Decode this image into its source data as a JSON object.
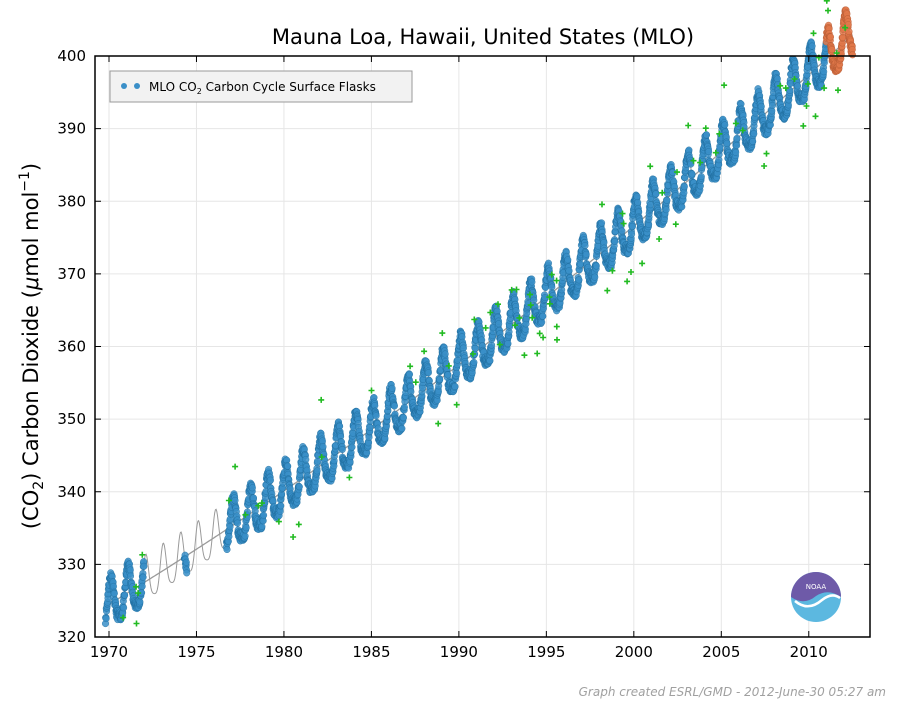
{
  "chart_data": {
    "type": "scatter",
    "title": "Mauna Loa, Hawaii, United States (MLO)",
    "ylabel_parts": {
      "pre": "(CO",
      "sub": "2",
      "mid": ") Carbon Dioxide (",
      "mu": "μ",
      "post": "mol mol",
      "sup": "−1",
      "end": ")"
    },
    "xlim": [
      1969.2,
      2013.5
    ],
    "ylim": [
      320,
      400
    ],
    "xticks": [
      1970,
      1975,
      1980,
      1985,
      1990,
      1995,
      2000,
      2005,
      2010
    ],
    "yticks": [
      320,
      330,
      340,
      350,
      360,
      370,
      380,
      390,
      400
    ],
    "grid": true,
    "legend": {
      "placement": "top-left",
      "text_parts": {
        "pre": "MLO CO",
        "sub": "2",
        "post": " Carbon Cycle Surface Flasks"
      }
    },
    "trend": {
      "base_year": 1970,
      "base_value": 324.5,
      "slope_per_year": 1.475,
      "curvature": 0.0087,
      "seasonal_amplitude": 3.1
    },
    "series": [
      {
        "kind": "flask-samples",
        "color": "#3a8fc8",
        "x_range": [
          1969.8,
          2011.0
        ]
      },
      {
        "kind": "outliers",
        "color": "#22bb22",
        "marker": "+"
      },
      {
        "kind": "preliminary",
        "color": "#e0784a",
        "x_range": [
          2011.0,
          2012.5
        ]
      },
      {
        "kind": "smoothed-curve",
        "color": "#9a9a9a"
      }
    ],
    "gap_interpolation_range": [
      1972.0,
      1976.7
    ],
    "credit": "Graph created ESRL/GMD - 2012-June-30 05:27 am",
    "logo": {
      "name": "noaa-logo",
      "text": "NOAA"
    }
  }
}
